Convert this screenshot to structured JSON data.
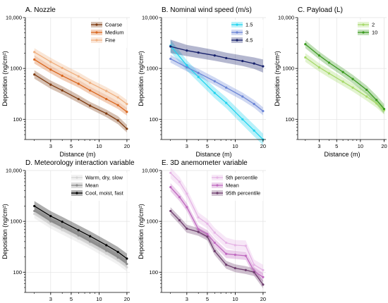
{
  "chart_data": [
    {
      "type": "line",
      "title": "A. Nozzle",
      "xlabel": "Distance (m)",
      "ylabel": "Deposition (ng/cm²)",
      "xscale": "log",
      "yscale": "log",
      "xlim": [
        1.6,
        21.5
      ],
      "ylim": [
        40,
        10000
      ],
      "xticks": [
        3,
        5,
        10,
        20
      ],
      "yticks": [
        100,
        1000,
        10000
      ],
      "ytick_labels": [
        "100",
        "1000",
        "10,000"
      ],
      "grid": true,
      "legend_position": "top-right",
      "series": [
        {
          "name": "Coarse",
          "color": "#7f3b10",
          "x": [
            2,
            3,
            4,
            6,
            8,
            12,
            16,
            20
          ],
          "y": [
            760,
            480,
            370,
            250,
            185,
            130,
            95,
            65
          ],
          "lo": [
            630,
            400,
            310,
            210,
            160,
            110,
            80,
            55
          ],
          "hi": [
            920,
            580,
            450,
            300,
            220,
            155,
            115,
            78
          ]
        },
        {
          "name": "Medium",
          "color": "#d9671f",
          "x": [
            2,
            3,
            4,
            6,
            8,
            12,
            16,
            20
          ],
          "y": [
            1500,
            950,
            720,
            500,
            370,
            250,
            190,
            140
          ],
          "lo": [
            1250,
            800,
            600,
            420,
            310,
            210,
            160,
            118
          ],
          "hi": [
            1800,
            1130,
            860,
            600,
            440,
            300,
            225,
            168
          ]
        },
        {
          "name": "Fine",
          "color": "#f0b080",
          "x": [
            2,
            3,
            4,
            6,
            8,
            12,
            16,
            20
          ],
          "y": [
            2100,
            1350,
            1020,
            700,
            520,
            360,
            270,
            200
          ],
          "lo": [
            1750,
            1120,
            860,
            590,
            440,
            300,
            225,
            168
          ],
          "hi": [
            2500,
            1620,
            1220,
            840,
            620,
            430,
            320,
            240
          ]
        }
      ]
    },
    {
      "type": "line",
      "title": "B. Nominal wind speed (m/s)",
      "xlabel": "Distance (m)",
      "ylabel": "Deposition (ng/cm²)",
      "xscale": "log",
      "yscale": "log",
      "xlim": [
        1.6,
        21.5
      ],
      "ylim": [
        40,
        10000
      ],
      "xticks": [
        3,
        5,
        10,
        20
      ],
      "yticks": [
        100,
        1000,
        10000
      ],
      "ytick_labels": [
        "100",
        "1000",
        "10,000"
      ],
      "grid": true,
      "legend_position": "top-right",
      "series": [
        {
          "name": "1.5",
          "color": "#22d4ee",
          "x": [
            2,
            3,
            4,
            6,
            8,
            12,
            16,
            20
          ],
          "y": [
            2800,
            1150,
            680,
            330,
            210,
            100,
            60,
            40
          ],
          "lo": [
            2100,
            900,
            540,
            260,
            165,
            78,
            46,
            31
          ],
          "hi": [
            3700,
            1450,
            850,
            420,
            270,
            130,
            78,
            52
          ]
        },
        {
          "name": "3",
          "color": "#6b85d6",
          "x": [
            2,
            3,
            4,
            6,
            8,
            12,
            16,
            20
          ],
          "y": [
            1550,
            1050,
            820,
            560,
            420,
            280,
            200,
            145
          ],
          "lo": [
            1300,
            880,
            690,
            470,
            350,
            235,
            168,
            120
          ],
          "hi": [
            1850,
            1250,
            980,
            670,
            500,
            335,
            240,
            172
          ]
        },
        {
          "name": "4.5",
          "color": "#16206b",
          "x": [
            2,
            3,
            4,
            6,
            8,
            12,
            16,
            20
          ],
          "y": [
            2700,
            2250,
            2050,
            1800,
            1600,
            1400,
            1250,
            1100
          ],
          "lo": [
            2000,
            1750,
            1600,
            1420,
            1280,
            1120,
            980,
            830
          ],
          "hi": [
            3700,
            2900,
            2650,
            2300,
            2050,
            1800,
            1650,
            1500
          ]
        }
      ]
    },
    {
      "type": "line",
      "title": "C. Payload (L)",
      "xlabel": "Distance (m)",
      "ylabel": "Deposition (ng/cm²)",
      "xscale": "log",
      "yscale": "log",
      "xlim": [
        1.6,
        21.5
      ],
      "ylim": [
        40,
        10000
      ],
      "xticks": [
        3,
        5,
        10,
        20
      ],
      "yticks": [
        100,
        1000,
        10000
      ],
      "ytick_labels": [
        "100",
        "1000",
        "10,000"
      ],
      "grid": true,
      "legend_position": "top-right",
      "series": [
        {
          "name": "2",
          "color": "#a6d96a",
          "x": [
            2,
            3,
            4,
            6,
            8,
            12,
            16,
            20
          ],
          "y": [
            1650,
            1050,
            800,
            550,
            420,
            280,
            205,
            150
          ],
          "lo": [
            1350,
            870,
            660,
            455,
            350,
            232,
            170,
            124
          ],
          "hi": [
            2000,
            1270,
            970,
            665,
            505,
            340,
            248,
            182
          ]
        },
        {
          "name": "10",
          "color": "#3a9a1f",
          "x": [
            2,
            3,
            4,
            6,
            8,
            12,
            16,
            20
          ],
          "y": [
            3000,
            1800,
            1300,
            850,
            620,
            380,
            240,
            160
          ],
          "lo": [
            2500,
            1500,
            1080,
            700,
            510,
            310,
            195,
            128
          ],
          "hi": [
            3600,
            2150,
            1560,
            1020,
            750,
            460,
            295,
            200
          ]
        }
      ]
    },
    {
      "type": "line",
      "title": "D. Meteorology interaction variable",
      "xlabel": "Distance (m)",
      "ylabel": "Deposition (ng/cm²)",
      "xscale": "log",
      "yscale": "log",
      "xlim": [
        1.6,
        21.5
      ],
      "ylim": [
        40,
        10000
      ],
      "xticks": [
        3,
        5,
        10,
        20
      ],
      "yticks": [
        100,
        1000,
        10000
      ],
      "ytick_labels": [
        "100",
        "1000",
        "10,000"
      ],
      "grid": true,
      "legend_position": "top-right",
      "series": [
        {
          "name": "Warm, dry, slow",
          "color": "#d4d4d4",
          "x": [
            2,
            3,
            4,
            6,
            8,
            12,
            16,
            20
          ],
          "y": [
            1400,
            880,
            670,
            460,
            350,
            230,
            170,
            125
          ],
          "lo": [
            1150,
            720,
            550,
            380,
            290,
            190,
            140,
            103
          ],
          "hi": [
            1700,
            1070,
            810,
            560,
            425,
            280,
            207,
            152
          ]
        },
        {
          "name": "Mean",
          "color": "#8c8c8c",
          "x": [
            2,
            3,
            4,
            6,
            8,
            12,
            16,
            20
          ],
          "y": [
            1600,
            1000,
            770,
            530,
            400,
            265,
            195,
            145
          ],
          "lo": [
            1350,
            840,
            650,
            445,
            336,
            222,
            163,
            121
          ],
          "hi": [
            1900,
            1190,
            915,
            630,
            476,
            315,
            232,
            173
          ]
        },
        {
          "name": "Cool, moist, fast",
          "color": "#000000",
          "x": [
            2,
            3,
            4,
            6,
            8,
            12,
            16,
            20
          ],
          "y": [
            2000,
            1270,
            980,
            670,
            510,
            340,
            250,
            185
          ],
          "lo": [
            1600,
            1010,
            780,
            535,
            405,
            270,
            198,
            147
          ],
          "hi": [
            2500,
            1590,
            1225,
            840,
            640,
            425,
            313,
            232
          ]
        }
      ]
    },
    {
      "type": "line",
      "title": "E. 3D anemometer variable",
      "xlabel": "Distance (m)",
      "ylabel": "Deposition (ng/cm²)",
      "xscale": "log",
      "yscale": "log",
      "xlim": [
        1.6,
        21.5
      ],
      "ylim": [
        40,
        10000
      ],
      "xticks": [
        3,
        5,
        10,
        20
      ],
      "yticks": [
        100,
        1000,
        10000
      ],
      "ytick_labels": [
        "100",
        "1000",
        "10,000"
      ],
      "grid": true,
      "legend_position": "top-right",
      "series": [
        {
          "name": "5th percentile",
          "color": "#e5b5e5",
          "x": [
            2,
            2.5,
            3,
            4,
            5,
            6,
            8,
            10,
            13,
            16,
            20
          ],
          "y": [
            9000,
            6000,
            3500,
            1200,
            900,
            600,
            380,
            340,
            330,
            140,
            110
          ],
          "lo": [
            7000,
            4800,
            2800,
            950,
            720,
            480,
            300,
            270,
            260,
            110,
            86
          ],
          "hi": [
            11500,
            7500,
            4400,
            1500,
            1120,
            750,
            480,
            430,
            420,
            178,
            140
          ]
        },
        {
          "name": "Mean",
          "color": "#c06ac0",
          "x": [
            2,
            2.5,
            3,
            4,
            5,
            6,
            8,
            10,
            13,
            16,
            20
          ],
          "y": [
            4700,
            3000,
            1900,
            700,
            560,
            380,
            230,
            220,
            210,
            105,
            80
          ],
          "lo": [
            3900,
            2500,
            1580,
            580,
            465,
            315,
            190,
            182,
            174,
            87,
            66
          ],
          "hi": [
            5650,
            3600,
            2280,
            840,
            672,
            456,
            276,
            264,
            252,
            126,
            96
          ]
        },
        {
          "name": "95th percentile",
          "color": "#6e3e6e",
          "x": [
            2,
            2.5,
            3,
            4,
            5,
            6,
            8,
            10,
            13,
            16,
            20
          ],
          "y": [
            1600,
            1050,
            720,
            620,
            500,
            260,
            140,
            120,
            110,
            100,
            57
          ],
          "lo": [
            1350,
            880,
            600,
            520,
            420,
            218,
            117,
            100,
            92,
            84,
            48
          ],
          "hi": [
            1900,
            1250,
            860,
            740,
            595,
            310,
            167,
            143,
            131,
            119,
            68
          ]
        }
      ]
    }
  ]
}
